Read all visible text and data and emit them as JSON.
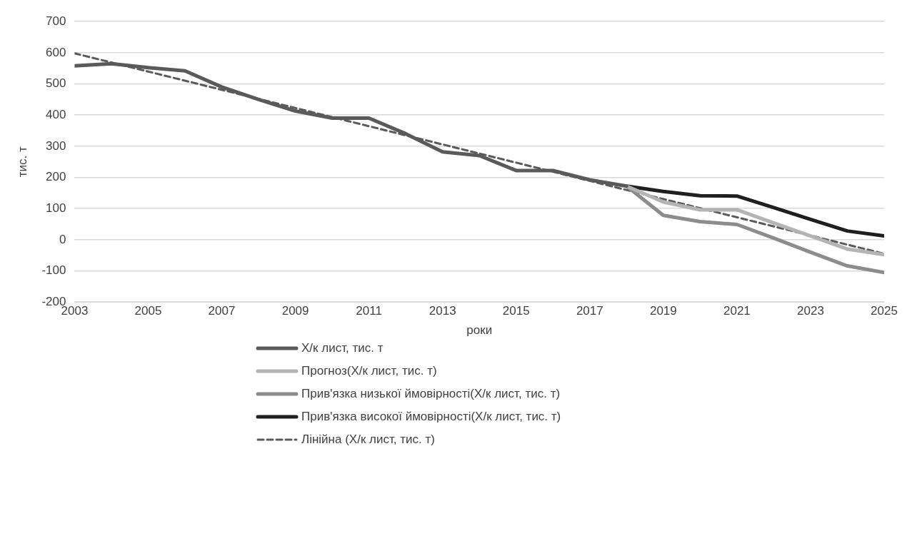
{
  "chart_data": {
    "type": "line",
    "xlabel": "роки",
    "ylabel": "тис. т",
    "x": [
      2003,
      2004,
      2005,
      2006,
      2007,
      2008,
      2009,
      2010,
      2011,
      2012,
      2013,
      2014,
      2015,
      2016,
      2017,
      2018,
      2019,
      2020,
      2021,
      2022,
      2023,
      2024,
      2025
    ],
    "xlim": [
      2003,
      2025
    ],
    "xticks": [
      2003,
      2005,
      2007,
      2009,
      2011,
      2013,
      2015,
      2017,
      2019,
      2021,
      2023,
      2025
    ],
    "ylim": [
      -200,
      700
    ],
    "yticks": [
      -200,
      -100,
      0,
      100,
      200,
      300,
      400,
      500,
      600,
      700
    ],
    "grid": "y",
    "legend": "bottom",
    "marker": "none",
    "series": [
      {
        "name": "Х/к лист, тис. т",
        "color": "#5a5a5a",
        "line_style": "solid",
        "values": [
          558,
          565,
          552,
          542,
          490,
          450,
          413,
          390,
          390,
          340,
          282,
          270,
          222,
          222,
          192,
          172,
          null,
          null,
          null,
          null,
          null,
          null,
          null
        ]
      },
      {
        "name": "Прогноз(Х/к лист, тис. т)",
        "color": "#b4b4b4",
        "line_style": "solid",
        "values": [
          null,
          null,
          null,
          null,
          null,
          null,
          null,
          null,
          null,
          null,
          null,
          null,
          null,
          null,
          null,
          172,
          121,
          96,
          96,
          54,
          12,
          -30,
          -48
        ]
      },
      {
        "name": "Прив'язка низької ймовірності(Х/к лист, тис. т)",
        "color": "#8c8c8c",
        "line_style": "solid",
        "values": [
          null,
          null,
          null,
          null,
          null,
          null,
          null,
          null,
          null,
          null,
          null,
          null,
          null,
          null,
          null,
          172,
          78,
          58,
          49,
          5,
          -40,
          -84,
          -105
        ]
      },
      {
        "name": "Прив'язка високої ймовірності(Х/к лист, тис. т)",
        "color": "#1f1f1f",
        "line_style": "solid",
        "values": [
          null,
          null,
          null,
          null,
          null,
          null,
          null,
          null,
          null,
          null,
          null,
          null,
          null,
          null,
          null,
          172,
          155,
          141,
          140,
          103,
          65,
          28,
          12
        ]
      },
      {
        "name": "Лінійна (Х/к лист, тис. т)",
        "type": "line",
        "color": "#5a5a5a",
        "line_style": "dashed",
        "x": [
          2003,
          2025
        ],
        "values": [
          598,
          -45
        ]
      }
    ]
  }
}
